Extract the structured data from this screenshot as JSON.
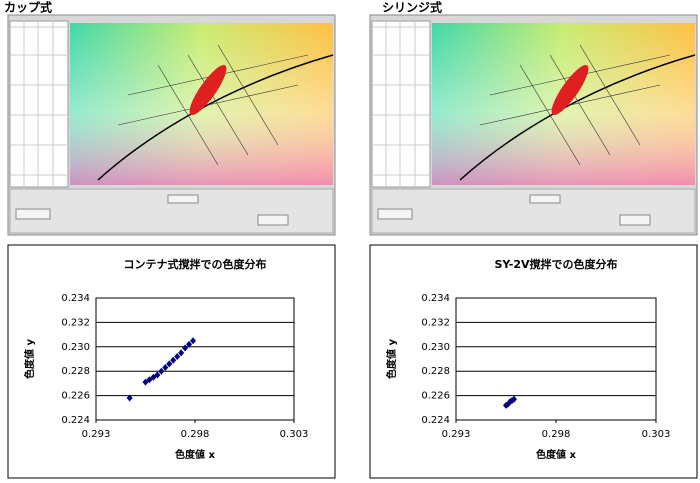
{
  "panels": [
    {
      "heading": "カップ式"
    },
    {
      "heading": "シリンジ式"
    }
  ],
  "chart_data": [
    {
      "type": "scatter",
      "title": "コンテナ式撹拌での色度分布",
      "x_label": "色度値 x",
      "y_label": "色度値 y",
      "color": "#000080",
      "grid": true,
      "xlim": [
        0.293,
        0.303
      ],
      "xticks": [
        0.293,
        0.298,
        0.303
      ],
      "ylim": [
        0.224,
        0.234
      ],
      "yticks": [
        0.224,
        0.226,
        0.228,
        {
          "value": 0.23,
          "label": "0.230"
        },
        0.232,
        0.234
      ],
      "x": [
        0.2947,
        0.2955,
        0.2957,
        0.2959,
        0.2961,
        0.2963,
        0.2965,
        0.2967,
        0.2969,
        0.2971,
        0.2973,
        0.2975,
        0.2977,
        0.2979
      ],
      "values": [
        0.2258,
        0.2271,
        0.2273,
        0.2275,
        0.2277,
        0.228,
        0.2283,
        0.2286,
        0.2289,
        0.2292,
        0.2295,
        0.2299,
        0.2302,
        0.2305
      ]
    },
    {
      "type": "scatter",
      "title": "SY-2V撹拌での色度分布",
      "x_label": "色度値 x",
      "y_label": "色度値 y",
      "color": "#000080",
      "grid": true,
      "xlim": [
        0.293,
        0.303
      ],
      "xticks": [
        0.293,
        0.298,
        0.303
      ],
      "ylim": [
        0.224,
        0.234
      ],
      "yticks": [
        0.224,
        0.226,
        0.228,
        {
          "value": 0.23,
          "label": "0.230"
        },
        0.232,
        0.234
      ],
      "x": [
        0.2955,
        0.2956,
        0.2957,
        0.2958,
        0.2959
      ],
      "values": [
        0.2252,
        0.2253,
        0.2255,
        0.2256,
        0.2257
      ]
    }
  ]
}
